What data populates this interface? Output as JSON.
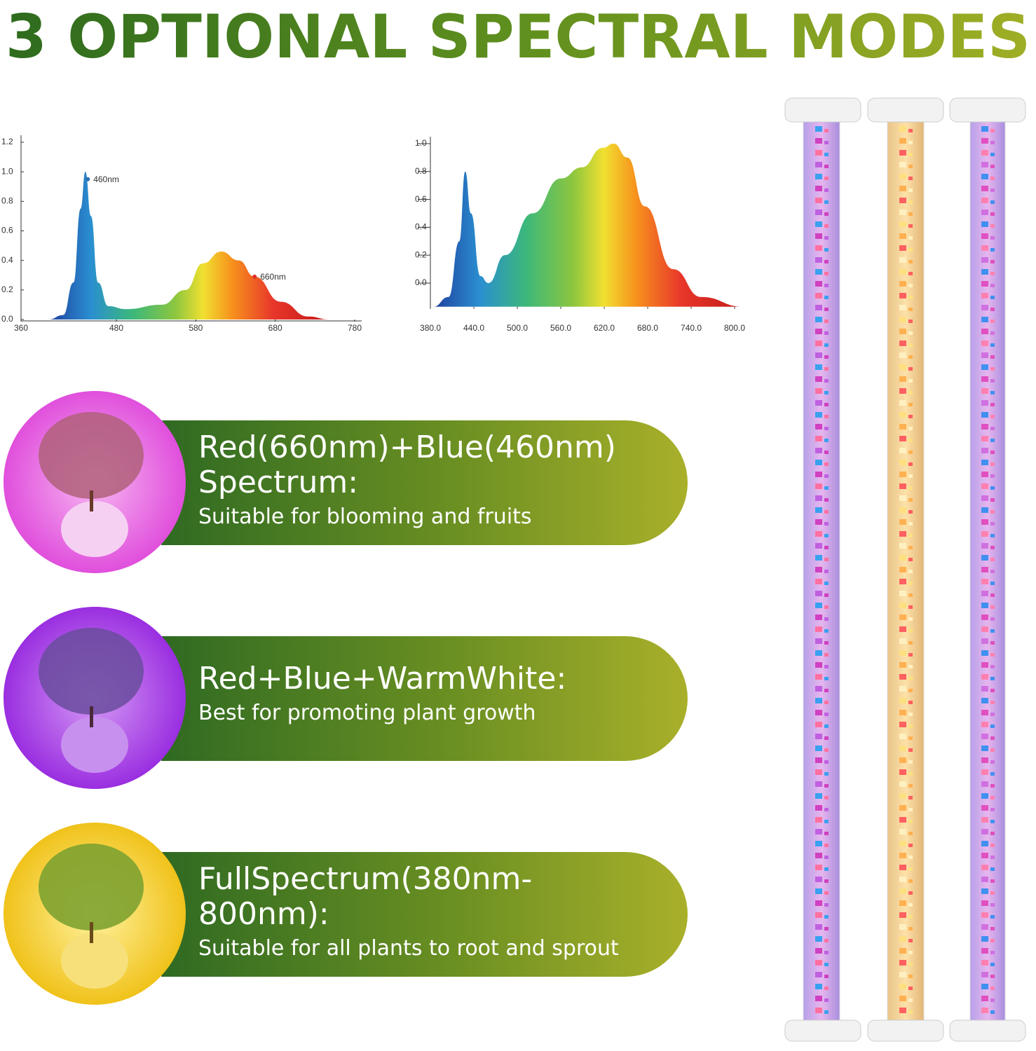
{
  "title": "3 OPTIONAL SPECTRAL MODES",
  "chart_data": [
    {
      "type": "area",
      "x": [
        395,
        413,
        426,
        435,
        441,
        448,
        457,
        470,
        492,
        537,
        567,
        589,
        612,
        634,
        654,
        687,
        722,
        748
      ],
      "values": [
        0,
        0.03,
        0.25,
        0.75,
        1.0,
        0.7,
        0.25,
        0.09,
        0.07,
        0.1,
        0.2,
        0.38,
        0.46,
        0.4,
        0.29,
        0.12,
        0.02,
        0
      ],
      "xlim": [
        360,
        780
      ],
      "xticks": [
        360,
        480,
        580,
        680,
        780
      ],
      "ylim": [
        0,
        1.2
      ],
      "yticks": [
        {
          "value": 0,
          "label": "0.0"
        },
        {
          "value": 0.2,
          "label": "0.2"
        },
        {
          "value": 0.4,
          "label": "0.4"
        },
        {
          "value": 0.6,
          "label": "0.6"
        },
        {
          "value": 0.8,
          "label": "0.8"
        },
        {
          "value": 1.0,
          "label": "1.0"
        },
        {
          "value": 1.2,
          "label": "1.2"
        }
      ],
      "annotations": [
        {
          "text": "460nm",
          "x": 444,
          "y": 0.95,
          "color": "#2a6fb5"
        },
        {
          "text": "660nm",
          "x": 654,
          "y": 0.29,
          "color": "#e0302a"
        }
      ]
    },
    {
      "type": "area",
      "x": [
        384,
        405,
        420,
        428,
        436,
        449,
        460,
        483,
        521,
        560,
        589,
        618,
        633,
        652,
        676,
        715,
        754,
        812
      ],
      "values": [
        -0.17,
        -0.1,
        0.3,
        0.8,
        0.5,
        0.05,
        0.0,
        0.2,
        0.5,
        0.75,
        0.83,
        0.97,
        1.0,
        0.9,
        0.55,
        0.1,
        -0.1,
        -0.17
      ],
      "xlim": [
        376,
        815
      ],
      "xticks": [
        {
          "value": 380,
          "label": "380.0"
        },
        {
          "value": 440,
          "label": "440.0"
        },
        {
          "value": 500,
          "label": "500.0"
        },
        {
          "value": 560,
          "label": "560.0"
        },
        {
          "value": 620,
          "label": "620.0"
        },
        {
          "value": 680,
          "label": "680.0"
        },
        {
          "value": 740,
          "label": "740.0"
        },
        {
          "value": 800,
          "label": "800.0"
        }
      ],
      "ylim": [
        -0.17,
        1.0
      ],
      "yticks": [
        {
          "value": 0,
          "label": "0.0"
        },
        {
          "value": 0.2,
          "label": "0.2"
        },
        {
          "value": 0.4,
          "label": "0.4"
        },
        {
          "value": 0.6,
          "label": "0.6"
        },
        {
          "value": 0.8,
          "label": "0.8"
        },
        {
          "value": 1.0,
          "label": "1.0"
        }
      ]
    }
  ],
  "modes": [
    {
      "title": "Red(660nm)+Blue(460nm) Spectrum:",
      "description": "Suitable for blooming and fruits"
    },
    {
      "title": "Red+Blue+WarmWhite:",
      "description": "Best for promoting plant growth"
    },
    {
      "title": "FullSpectrum(380nm-800nm):",
      "description": "Suitable for all plants to root and sprout"
    }
  ]
}
